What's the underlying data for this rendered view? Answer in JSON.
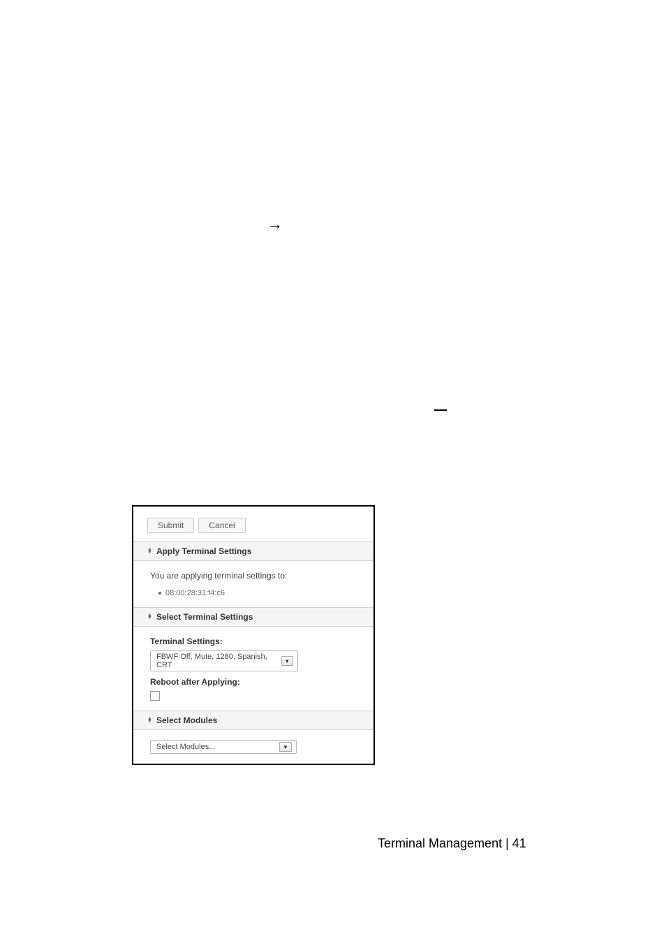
{
  "arrow_glyph": "→",
  "dialog": {
    "buttons": {
      "submit": "Submit",
      "cancel": "Cancel"
    },
    "section1": {
      "title": "Apply Terminal Settings",
      "info": "You are applying terminal settings to:",
      "mac": "08:00:28:31:f4:c6"
    },
    "section2": {
      "title": "Select Terminal Settings",
      "label_settings": "Terminal Settings:",
      "select_value": "FBWF Off, Mute, 1280, Spanish, CRT",
      "label_reboot": "Reboot after Applying:"
    },
    "section3": {
      "title": "Select Modules",
      "select_value": "Select Modules..."
    }
  },
  "footer": {
    "text": "Terminal Management | 41"
  },
  "colors": {
    "border": "#000000",
    "header_bg": "#f5f5f5",
    "text": "#333333",
    "muted": "#666666"
  }
}
